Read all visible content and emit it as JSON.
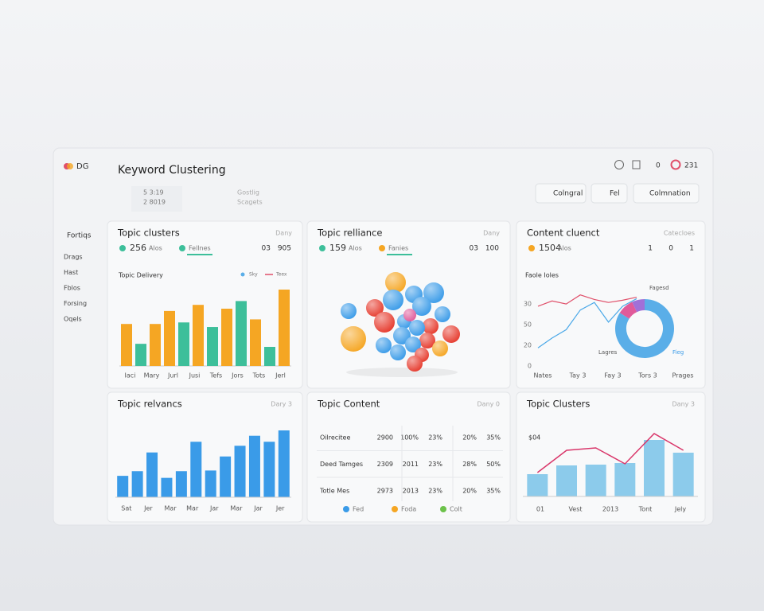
{
  "app": {
    "logo": "DG",
    "title": "Keyword Clustering",
    "crumbs": [
      "5 3:19",
      "2 8019"
    ],
    "crumbs2": [
      "Gostlig",
      "Scagets"
    ],
    "header_counts": [
      "0",
      "231"
    ],
    "buttons": [
      "Colngral",
      "Fel",
      "Colmnation"
    ]
  },
  "sidebar": {
    "heading": "Fortiqs",
    "items": [
      "Drags",
      "Hast",
      "Fblos",
      "Forsing",
      "Oqels"
    ]
  },
  "panels": [
    {
      "title": "Topic clusters",
      "filter": "Dany",
      "stat": "256",
      "stat_unit": "Alos",
      "tab": "Fellnes",
      "counts": [
        "03",
        "905"
      ],
      "chart": {
        "type": "bar",
        "subtitle": "Topic Delivery",
        "legend": [
          "Sky",
          "Teex"
        ],
        "legend_colors": [
          "#5aaee8",
          "#e0506a"
        ],
        "ylim": [
          0,
          100
        ],
        "values": [
          55,
          29,
          55,
          72,
          57,
          80,
          51,
          75,
          85,
          61,
          25,
          100
        ],
        "colors": [
          "#f5a623",
          "#3dbf9a",
          "#f5a623",
          "#f5a623",
          "#3dbf9a",
          "#f5a623",
          "#3dbf9a",
          "#f5a623",
          "#3dbf9a",
          "#f5a623",
          "#3dbf9a",
          "#f5a623"
        ],
        "x_labels": [
          "Iaci",
          "Mary",
          "Jurl",
          "Jusi",
          "Tefs",
          "Jors",
          "Tots",
          "Jerl"
        ]
      }
    },
    {
      "title": "Topic relliance",
      "filter": "Dany",
      "stat": "159",
      "stat_unit": "Alos",
      "tab": "Fanies",
      "counts": [
        "03",
        "100"
      ],
      "chart": {
        "type": "cluster"
      }
    },
    {
      "title": "Content cluenct",
      "filter": "Catecloes",
      "stat": "1504",
      "stat_unit": "Alos",
      "counts": [
        "1",
        "0",
        "1"
      ],
      "chart": {
        "type": "line",
        "subtitle": "Faole Ioles",
        "ylim": [
          0,
          100
        ],
        "y_labels": [
          "30",
          "50",
          "20",
          "0"
        ],
        "series": [
          {
            "color": "#e0506a",
            "values": [
              79,
              86,
              82,
              94,
              88,
              84,
              87,
              91
            ]
          },
          {
            "color": "#4aa8e8",
            "values": [
              24,
              37,
              48,
              74,
              84,
              58,
              79,
              89
            ]
          }
        ],
        "x_labels": [
          "Nates",
          "Tay 3",
          "Fay 3",
          "Tors 3",
          "Prages"
        ],
        "donut": {
          "values": [
            84,
            9,
            7
          ],
          "colors": [
            "#5aaee8",
            "#e05a9a",
            "#a070d8"
          ],
          "labels": [
            "Fagesd",
            "Lagres",
            "Fieg"
          ]
        }
      }
    },
    {
      "title": "Topic relvancs",
      "filter": "Dary 3",
      "chart": {
        "type": "bar",
        "ylim": [
          0,
          100
        ],
        "values": [
          32,
          39,
          67,
          29,
          39,
          83,
          40,
          61,
          77,
          92,
          83,
          100
        ],
        "color": "#3a9be8",
        "x_labels": [
          "Sat",
          "Jer",
          "Mar",
          "Mar",
          "Jar",
          "Mar",
          "Jar",
          "Jer"
        ]
      }
    },
    {
      "title": "Topic Content",
      "filter": "Dany 0",
      "table": {
        "rows": [
          [
            "Oilrecitee",
            "2900",
            "100%",
            "23%",
            "20%",
            "35%"
          ],
          [
            "Deed Tamges",
            "2309",
            "2011",
            "23%",
            "28%",
            "50%"
          ],
          [
            "Totle Mes",
            "2973",
            "2013",
            "23%",
            "20%",
            "35%"
          ]
        ],
        "legend": [
          "Fed",
          "Foda",
          "Colt"
        ],
        "legend_colors": [
          "#3a9be8",
          "#f5a623",
          "#6cc24a"
        ]
      }
    },
    {
      "title": "Topic Clusters",
      "filter": "Dany 3",
      "chart": {
        "type": "combo",
        "label": "$04",
        "ylim": [
          0,
          80
        ],
        "values": [
          28,
          39,
          40,
          42,
          71,
          55
        ],
        "color": "#8ccbeb",
        "line": {
          "color": "#d9366a",
          "values": [
            30,
            58,
            61,
            41,
            79,
            58
          ]
        },
        "x_labels": [
          "01",
          "Vest",
          "2013",
          "Tont",
          "Jely"
        ]
      }
    }
  ]
}
